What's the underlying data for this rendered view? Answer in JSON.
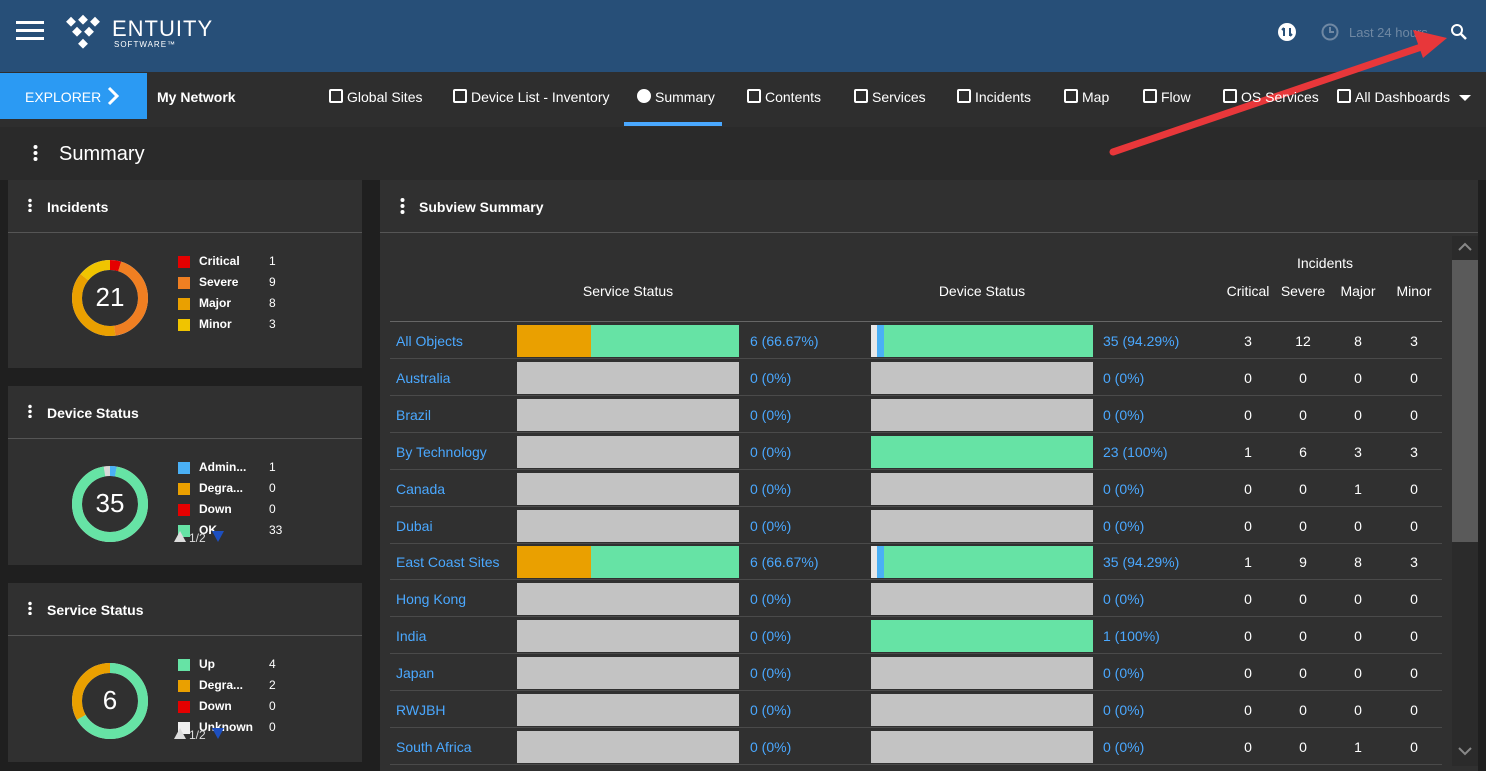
{
  "header": {
    "brand": "ENTUITY",
    "brand_sub": "SOFTWARE™",
    "time_range": "Last 24 hours"
  },
  "nav": {
    "explorer": "EXPLORER",
    "context": "My Network",
    "tabs": [
      "Global Sites",
      "Device List - Inventory",
      "Summary",
      "Contents",
      "Services",
      "Incidents",
      "Map",
      "Flow",
      "OS Services",
      "All Dashboards"
    ]
  },
  "page_title": "Summary",
  "widgets": [
    {
      "title": "Incidents",
      "total": 21,
      "items": [
        {
          "name": "Critical",
          "value": 1,
          "color": "#e50000"
        },
        {
          "name": "Severe",
          "value": 9,
          "color": "#f07f22"
        },
        {
          "name": "Major",
          "value": 8,
          "color": "#eaa000"
        },
        {
          "name": "Minor",
          "value": 3,
          "color": "#f0c400"
        }
      ]
    },
    {
      "title": "Device Status",
      "total": 35,
      "pager": "1/2",
      "items": [
        {
          "name": "Admin...",
          "value": 1,
          "color": "#4ab0f5"
        },
        {
          "name": "Degra...",
          "value": 0,
          "color": "#eaa000"
        },
        {
          "name": "Down",
          "value": 0,
          "color": "#e50000"
        },
        {
          "name": "OK",
          "value": 33,
          "color": "#66e3a5"
        }
      ]
    },
    {
      "title": "Service Status",
      "total": 6,
      "pager": "1/2",
      "items": [
        {
          "name": "Up",
          "value": 4,
          "color": "#66e3a5"
        },
        {
          "name": "Degra...",
          "value": 2,
          "color": "#eaa000"
        },
        {
          "name": "Down",
          "value": 0,
          "color": "#e50000"
        },
        {
          "name": "Unknown",
          "value": 0,
          "color": "#f0f0f0"
        }
      ]
    }
  ],
  "subview": {
    "title": "Subview Summary",
    "incidents_label": "Incidents",
    "columns": [
      "Service Status",
      "Device Status",
      "Critical",
      "Severe",
      "Major",
      "Minor"
    ],
    "rows": [
      {
        "name": "All Objects",
        "service": "6 (66.67%)",
        "service_bar": [
          {
            "color": "#eaa000",
            "value": 33.33
          },
          {
            "color": "#66e3a5",
            "value": 66.67
          }
        ],
        "device": "35 (94.29%)",
        "device_bar": [
          {
            "color": "#e8e8e8",
            "value": 2.86
          },
          {
            "color": "#4ab0f5",
            "value": 2.86
          },
          {
            "color": "#66e3a5",
            "value": 94.29
          }
        ],
        "incidents": [
          3,
          12,
          8,
          3
        ]
      },
      {
        "name": "Australia",
        "service": "0 (0%)",
        "service_bar": [],
        "device": "0 (0%)",
        "device_bar": [],
        "incidents": [
          0,
          0,
          0,
          0
        ]
      },
      {
        "name": "Brazil",
        "service": "0 (0%)",
        "service_bar": [],
        "device": "0 (0%)",
        "device_bar": [],
        "incidents": [
          0,
          0,
          0,
          0
        ]
      },
      {
        "name": "By Technology",
        "service": "0 (0%)",
        "service_bar": [],
        "device": "23 (100%)",
        "device_bar": [
          {
            "color": "#66e3a5",
            "value": 100
          }
        ],
        "incidents": [
          1,
          6,
          3,
          3
        ]
      },
      {
        "name": "Canada",
        "service": "0 (0%)",
        "service_bar": [],
        "device": "0 (0%)",
        "device_bar": [],
        "incidents": [
          0,
          0,
          1,
          0
        ]
      },
      {
        "name": "Dubai",
        "service": "0 (0%)",
        "service_bar": [],
        "device": "0 (0%)",
        "device_bar": [],
        "incidents": [
          0,
          0,
          0,
          0
        ]
      },
      {
        "name": "East Coast Sites",
        "service": "6 (66.67%)",
        "service_bar": [
          {
            "color": "#eaa000",
            "value": 33.33
          },
          {
            "color": "#66e3a5",
            "value": 66.67
          }
        ],
        "device": "35 (94.29%)",
        "device_bar": [
          {
            "color": "#e8e8e8",
            "value": 2.86
          },
          {
            "color": "#4ab0f5",
            "value": 2.86
          },
          {
            "color": "#66e3a5",
            "value": 94.29
          }
        ],
        "incidents": [
          1,
          9,
          8,
          3
        ]
      },
      {
        "name": "Hong Kong",
        "service": "0 (0%)",
        "service_bar": [],
        "device": "0 (0%)",
        "device_bar": [],
        "incidents": [
          0,
          0,
          0,
          0
        ]
      },
      {
        "name": "India",
        "service": "0 (0%)",
        "service_bar": [],
        "device": "1 (100%)",
        "device_bar": [
          {
            "color": "#66e3a5",
            "value": 100
          }
        ],
        "incidents": [
          0,
          0,
          0,
          0
        ]
      },
      {
        "name": "Japan",
        "service": "0 (0%)",
        "service_bar": [],
        "device": "0 (0%)",
        "device_bar": [],
        "incidents": [
          0,
          0,
          0,
          0
        ]
      },
      {
        "name": "RWJBH",
        "service": "0 (0%)",
        "service_bar": [],
        "device": "0 (0%)",
        "device_bar": [],
        "incidents": [
          0,
          0,
          0,
          0
        ]
      },
      {
        "name": "South Africa",
        "service": "0 (0%)",
        "service_bar": [],
        "device": "0 (0%)",
        "device_bar": [],
        "incidents": [
          0,
          0,
          1,
          0
        ]
      }
    ]
  }
}
